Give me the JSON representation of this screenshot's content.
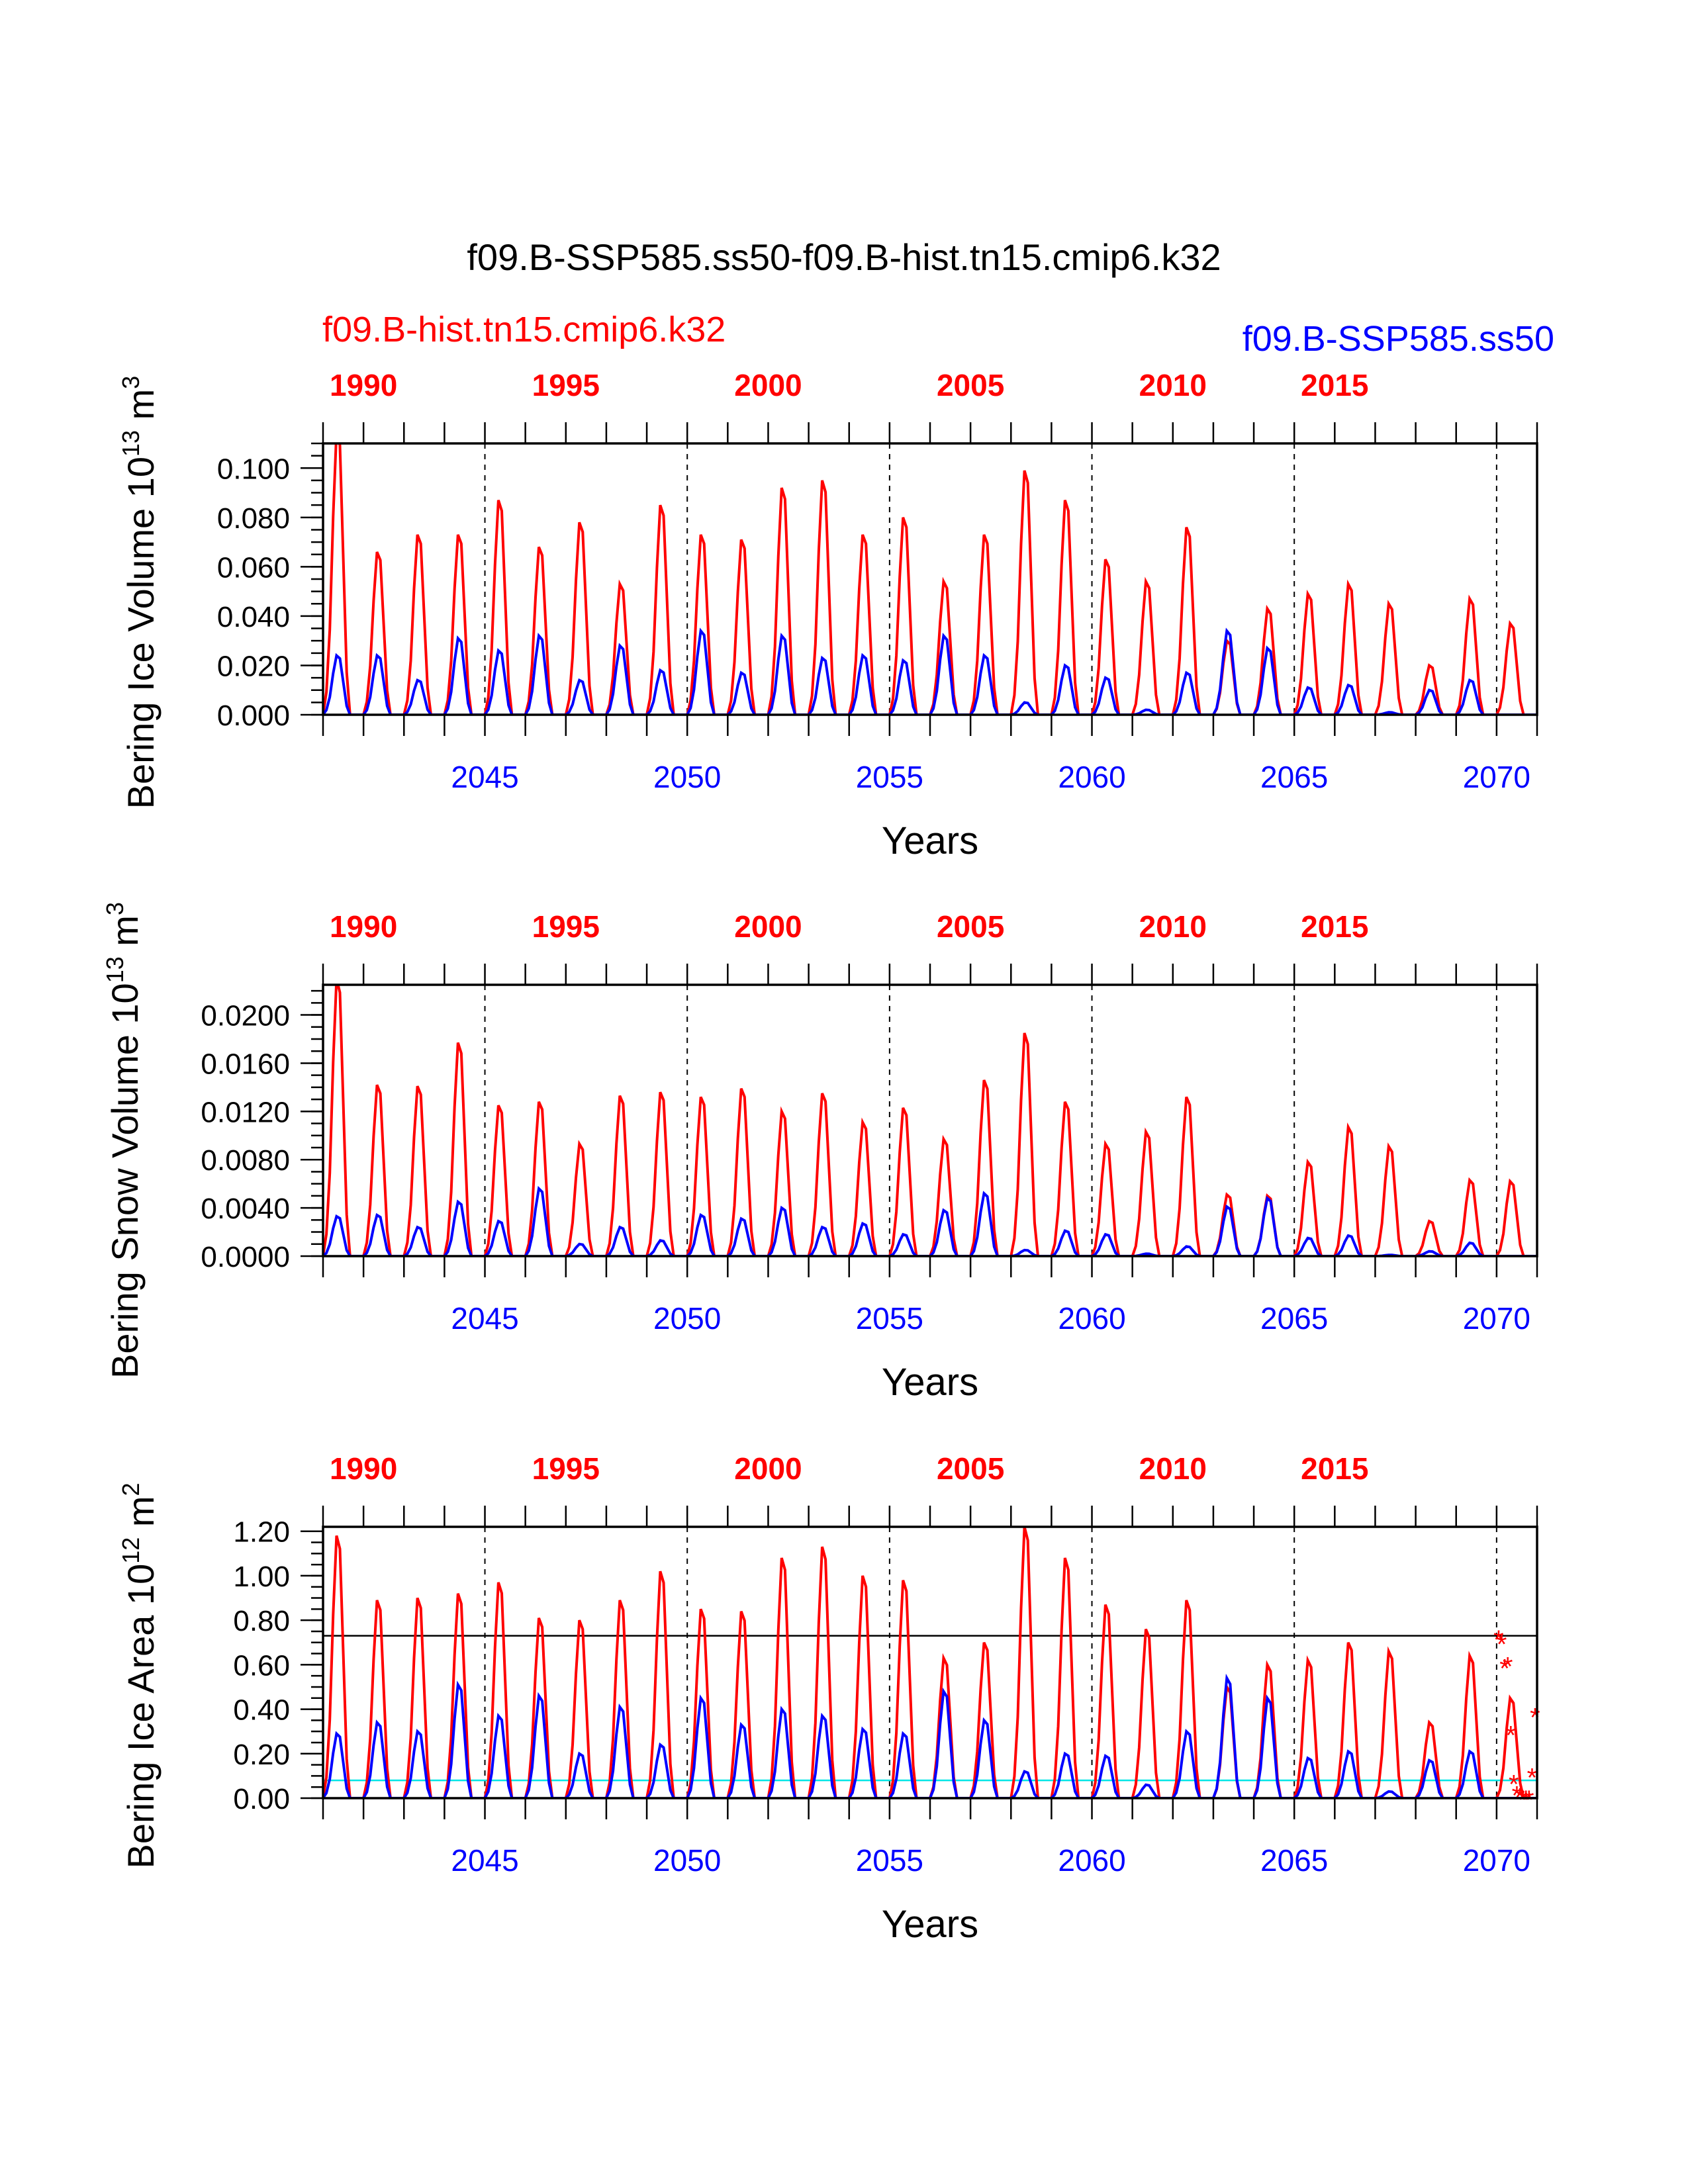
{
  "title": "f09.B-SSP585.ss50-f09.B-hist.tn15.cmip6.k32",
  "legend": {
    "left": "f09.B-hist.tn15.cmip6.k32",
    "right": "f09.B-SSP585.ss50"
  },
  "colors": {
    "hist": "#ff0000",
    "ssp": "#0000ff",
    "frame": "#000000",
    "cyan": "#00e5e5"
  },
  "chart_data": [
    {
      "type": "line",
      "ylabel": "Bering Ice Volume 10",
      "ylabel_exp": "13",
      "ylabel_unit": " m",
      "ylabel_unit_exp": "3",
      "xlabel": "Years",
      "ylim": [
        0,
        0.11
      ],
      "yticks": [
        "0.000",
        "0.020",
        "0.040",
        "0.060",
        "0.080",
        "0.100"
      ],
      "yticks_values": [
        0,
        0.02,
        0.04,
        0.06,
        0.08,
        0.1
      ],
      "x_bottom_ticks": [
        "2045",
        "2050",
        "2055",
        "2060",
        "2065",
        "2070"
      ],
      "x_top_ticks": [
        "1990",
        "1995",
        "2000",
        "2005",
        "2010",
        "2015"
      ],
      "series": [
        {
          "name": "f09.B-hist.tn15.cmip6.k32",
          "peaks": [
            0.115,
            0.066,
            0.073,
            0.073,
            0.087,
            0.068,
            0.078,
            0.053,
            0.085,
            0.073,
            0.071,
            0.092,
            0.095,
            0.073,
            0.08,
            0.054,
            0.073,
            0.099,
            0.087,
            0.063,
            0.054,
            0.076,
            0.03,
            0.043,
            0.049,
            0.053,
            0.045,
            0.02,
            0.047,
            0.037
          ]
        },
        {
          "name": "f09.B-SSP585.ss50",
          "peaks": [
            0.024,
            0.024,
            0.014,
            0.031,
            0.026,
            0.032,
            0.014,
            0.028,
            0.018,
            0.034,
            0.017,
            0.032,
            0.023,
            0.024,
            0.022,
            0.032,
            0.024,
            0.005,
            0.02,
            0.015,
            0.002,
            0.017,
            0.034,
            0.027,
            0.011,
            0.012,
            0.001,
            0.01,
            0.014,
            0.0
          ]
        }
      ]
    },
    {
      "type": "line",
      "ylabel": "Bering Snow Volume 10",
      "ylabel_exp": "13",
      "ylabel_unit": " m",
      "ylabel_unit_exp": "3",
      "xlabel": "Years",
      "ylim": [
        0,
        0.0225
      ],
      "yticks": [
        "0.0000",
        "0.0040",
        "0.0080",
        "0.0120",
        "0.0160",
        "0.0200"
      ],
      "yticks_values": [
        0,
        0.004,
        0.008,
        0.012,
        0.016,
        0.02
      ],
      "x_bottom_ticks": [
        "2045",
        "2050",
        "2055",
        "2060",
        "2065",
        "2070"
      ],
      "x_top_ticks": [
        "1990",
        "1995",
        "2000",
        "2005",
        "2010",
        "2015"
      ],
      "series": [
        {
          "name": "f09.B-hist.tn15.cmip6.k32",
          "peaks": [
            0.023,
            0.0142,
            0.0141,
            0.0177,
            0.0125,
            0.0128,
            0.0093,
            0.0133,
            0.0136,
            0.0132,
            0.0139,
            0.012,
            0.0135,
            0.0111,
            0.0123,
            0.0097,
            0.0146,
            0.0185,
            0.0128,
            0.0093,
            0.0103,
            0.0132,
            0.0051,
            0.005,
            0.0078,
            0.0107,
            0.0091,
            0.0029,
            0.0063,
            0.0062
          ]
        },
        {
          "name": "f09.B-SSP585.ss50",
          "peaks": [
            0.0033,
            0.0034,
            0.0024,
            0.0045,
            0.0029,
            0.0056,
            0.001,
            0.0024,
            0.0013,
            0.0034,
            0.0031,
            0.004,
            0.0024,
            0.0027,
            0.0018,
            0.0038,
            0.0052,
            0.0005,
            0.0021,
            0.0018,
            0.0002,
            0.0008,
            0.0041,
            0.0048,
            0.0015,
            0.0017,
            0.0001,
            0.0004,
            0.0011,
            0.0
          ]
        }
      ]
    },
    {
      "type": "line",
      "ylabel": "Bering Ice Area 10",
      "ylabel_exp": "12",
      "ylabel_unit": " m",
      "ylabel_unit_exp": "2",
      "xlabel": "Years",
      "ylim": [
        0,
        1.22
      ],
      "yticks": [
        "0.00",
        "0.20",
        "0.40",
        "0.60",
        "0.80",
        "1.00",
        "1.20"
      ],
      "yticks_values": [
        0,
        0.2,
        0.4,
        0.6,
        0.8,
        1.0,
        1.2
      ],
      "x_bottom_ticks": [
        "2045",
        "2050",
        "2055",
        "2060",
        "2065",
        "2070"
      ],
      "x_top_ticks": [
        "1990",
        "1995",
        "2000",
        "2005",
        "2010",
        "2015"
      ],
      "reference_lines": {
        "black": 0.73,
        "cyan": 0.08
      },
      "series": [
        {
          "name": "f09.B-hist.tn15.cmip6.k32",
          "peaks": [
            1.18,
            0.89,
            0.9,
            0.92,
            0.97,
            0.81,
            0.8,
            0.89,
            1.02,
            0.85,
            0.84,
            1.08,
            1.13,
            1.0,
            0.98,
            0.63,
            0.7,
            1.22,
            1.08,
            0.87,
            0.76,
            0.89,
            0.5,
            0.6,
            0.62,
            0.7,
            0.66,
            0.34,
            0.64,
            0.45
          ]
        },
        {
          "name": "f09.B-SSP585.ss50",
          "peaks": [
            0.29,
            0.34,
            0.3,
            0.51,
            0.37,
            0.46,
            0.2,
            0.41,
            0.24,
            0.45,
            0.33,
            0.4,
            0.37,
            0.31,
            0.29,
            0.48,
            0.35,
            0.12,
            0.2,
            0.19,
            0.06,
            0.3,
            0.54,
            0.45,
            0.18,
            0.21,
            0.03,
            0.17,
            0.21,
            0.0
          ]
        }
      ],
      "markers": {
        "symbol": "*",
        "values": [
          0.72,
          0.7,
          0.59,
          0.6,
          0.29,
          0.07,
          0.02,
          0.01,
          0.0,
          0.0,
          0.0,
          0.1,
          0.37
        ]
      }
    }
  ]
}
